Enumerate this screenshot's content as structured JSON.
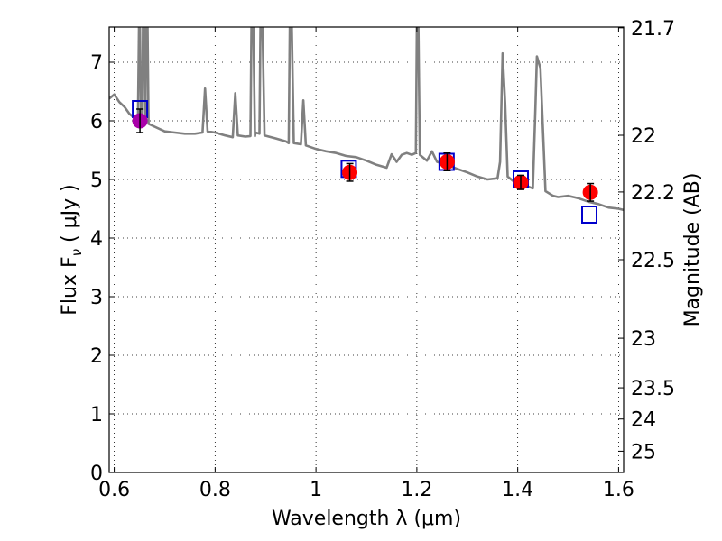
{
  "chart_data": {
    "type": "scatter",
    "xlabel": "Wavelength  λ (μm)",
    "ylabel": "Flux  F",
    "ylabel_sub": "ν",
    "ylabel_unit": "  ( μJy )",
    "y2label": "Magnitude (AB)",
    "xlim": [
      0.59,
      1.61
    ],
    "ylim": [
      0,
      7.6
    ],
    "grid": true,
    "x_ticks": [
      0.6,
      0.8,
      1.0,
      1.2,
      1.4,
      1.6
    ],
    "x_tick_labels": [
      "0.6",
      "0.8",
      "1",
      "1.2",
      "1.4",
      "1.6"
    ],
    "y_ticks": [
      0,
      1,
      2,
      3,
      4,
      5,
      6,
      7
    ],
    "y_tick_labels": [
      "0",
      "1",
      "2",
      "3",
      "4",
      "5",
      "6",
      "7"
    ],
    "y2_ticks": [
      {
        "label": "21.7",
        "flux": 7.587
      },
      {
        "label": "22",
        "flux": 5.754
      },
      {
        "label": "22.2",
        "flux": 4.786
      },
      {
        "label": "22.5",
        "flux": 3.631
      },
      {
        "label": "23",
        "flux": 2.291
      },
      {
        "label": "23.5",
        "flux": 1.445
      },
      {
        "label": "24",
        "flux": 0.912
      },
      {
        "label": "25",
        "flux": 0.363
      }
    ],
    "series": [
      {
        "kind": "line",
        "color": "#808080",
        "points": [
          [
            0.59,
            6.38
          ],
          [
            0.6,
            6.45
          ],
          [
            0.61,
            6.32
          ],
          [
            0.62,
            6.24
          ],
          [
            0.63,
            6.12
          ],
          [
            0.64,
            6.05
          ],
          [
            0.647,
            6.1
          ],
          [
            0.649,
            7.6
          ],
          [
            0.651,
            7.6
          ],
          [
            0.653,
            6.05
          ],
          [
            0.656,
            6.0
          ],
          [
            0.657,
            7.6
          ],
          [
            0.66,
            7.6
          ],
          [
            0.662,
            6.0
          ],
          [
            0.663,
            7.6
          ],
          [
            0.666,
            7.6
          ],
          [
            0.668,
            5.95
          ],
          [
            0.68,
            5.9
          ],
          [
            0.7,
            5.82
          ],
          [
            0.72,
            5.8
          ],
          [
            0.74,
            5.78
          ],
          [
            0.76,
            5.78
          ],
          [
            0.775,
            5.8
          ],
          [
            0.78,
            6.55
          ],
          [
            0.785,
            5.82
          ],
          [
            0.8,
            5.8
          ],
          [
            0.82,
            5.75
          ],
          [
            0.835,
            5.72
          ],
          [
            0.84,
            6.47
          ],
          [
            0.845,
            5.75
          ],
          [
            0.86,
            5.73
          ],
          [
            0.87,
            5.74
          ],
          [
            0.872,
            7.6
          ],
          [
            0.876,
            7.6
          ],
          [
            0.879,
            5.74
          ],
          [
            0.88,
            5.8
          ],
          [
            0.888,
            5.78
          ],
          [
            0.89,
            7.6
          ],
          [
            0.894,
            7.6
          ],
          [
            0.898,
            5.75
          ],
          [
            0.92,
            5.7
          ],
          [
            0.94,
            5.65
          ],
          [
            0.946,
            5.62
          ],
          [
            0.948,
            7.6
          ],
          [
            0.952,
            7.6
          ],
          [
            0.956,
            5.62
          ],
          [
            0.97,
            5.6
          ],
          [
            0.975,
            6.35
          ],
          [
            0.98,
            5.58
          ],
          [
            1.0,
            5.52
          ],
          [
            1.02,
            5.48
          ],
          [
            1.04,
            5.45
          ],
          [
            1.06,
            5.4
          ],
          [
            1.08,
            5.38
          ],
          [
            1.1,
            5.32
          ],
          [
            1.12,
            5.25
          ],
          [
            1.14,
            5.2
          ],
          [
            1.15,
            5.43
          ],
          [
            1.16,
            5.3
          ],
          [
            1.17,
            5.42
          ],
          [
            1.18,
            5.45
          ],
          [
            1.19,
            5.42
          ],
          [
            1.198,
            5.45
          ],
          [
            1.2,
            7.6
          ],
          [
            1.203,
            7.6
          ],
          [
            1.206,
            5.42
          ],
          [
            1.22,
            5.32
          ],
          [
            1.23,
            5.48
          ],
          [
            1.24,
            5.3
          ],
          [
            1.26,
            5.25
          ],
          [
            1.28,
            5.18
          ],
          [
            1.3,
            5.12
          ],
          [
            1.32,
            5.05
          ],
          [
            1.34,
            5.0
          ],
          [
            1.36,
            5.02
          ],
          [
            1.365,
            5.3
          ],
          [
            1.37,
            7.15
          ],
          [
            1.375,
            6.3
          ],
          [
            1.38,
            5.05
          ],
          [
            1.39,
            4.98
          ],
          [
            1.4,
            4.92
          ],
          [
            1.41,
            4.9
          ],
          [
            1.42,
            4.88
          ],
          [
            1.43,
            4.85
          ],
          [
            1.435,
            6.2
          ],
          [
            1.438,
            7.1
          ],
          [
            1.445,
            6.9
          ],
          [
            1.455,
            4.8
          ],
          [
            1.47,
            4.72
          ],
          [
            1.48,
            4.7
          ],
          [
            1.5,
            4.72
          ],
          [
            1.52,
            4.68
          ],
          [
            1.54,
            4.62
          ],
          [
            1.56,
            4.58
          ],
          [
            1.58,
            4.52
          ],
          [
            1.6,
            4.5
          ],
          [
            1.61,
            4.48
          ]
        ]
      },
      {
        "kind": "squares",
        "color": "#0000cc",
        "points": [
          [
            0.651,
            6.2
          ],
          [
            1.065,
            5.18
          ],
          [
            1.259,
            5.3
          ],
          [
            1.406,
            5.0
          ],
          [
            1.542,
            4.4
          ]
        ]
      },
      {
        "kind": "errorbars",
        "color": "#ff0000",
        "points": [
          {
            "x": 1.067,
            "y": 5.12,
            "err": 0.15
          },
          {
            "x": 1.26,
            "y": 5.3,
            "err": 0.15
          },
          {
            "x": 1.406,
            "y": 4.95,
            "err": 0.12
          },
          {
            "x": 1.544,
            "y": 4.78,
            "err": 0.15
          }
        ]
      },
      {
        "kind": "errorbars",
        "color": "#aa00aa",
        "points": [
          {
            "x": 0.651,
            "y": 6.0,
            "err": 0.2
          }
        ]
      }
    ]
  }
}
